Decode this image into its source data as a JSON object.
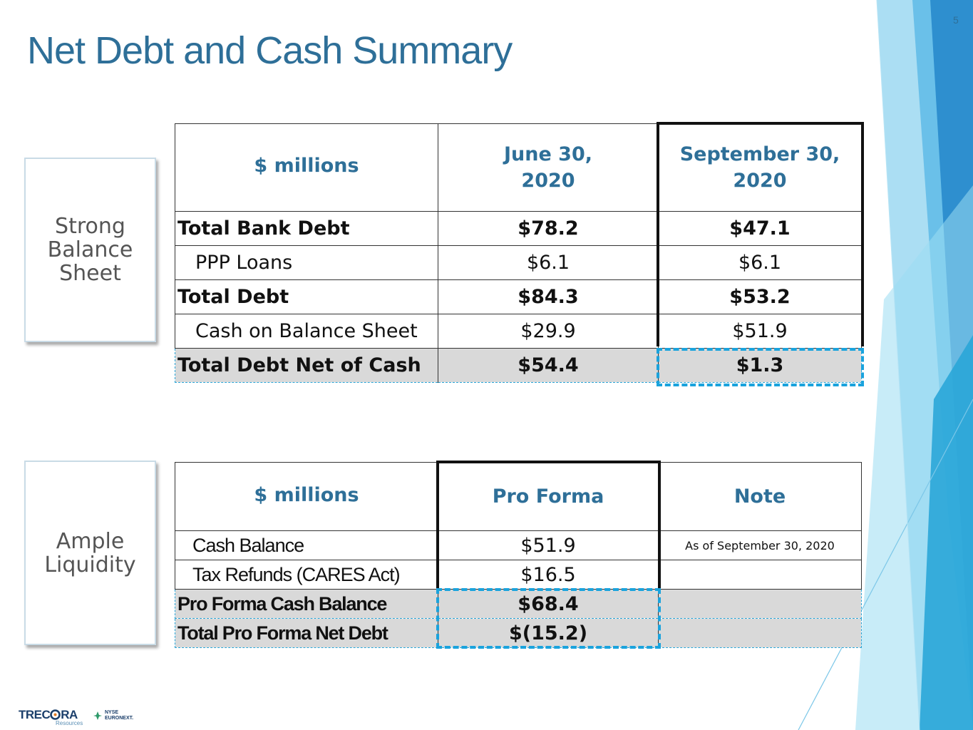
{
  "slide": {
    "title": "Net Debt and Cash Summary",
    "page_number": "5"
  },
  "card1": {
    "line1": "Strong",
    "line2": "Balance",
    "line3": "Sheet"
  },
  "card2": {
    "line1": "Ample",
    "line2": "Liquidity"
  },
  "table1": {
    "headers": [
      "$ millions",
      "June 30, 2020",
      "September 30, 2020"
    ],
    "header_lines": {
      "col2": [
        "June 30,",
        "2020"
      ],
      "col3": [
        "September 30,",
        "2020"
      ]
    },
    "rows": [
      {
        "label": "Total Bank Debt",
        "june": "$78.2",
        "sept": "$47.1"
      },
      {
        "label": "PPP Loans",
        "june": "$6.1",
        "sept": "$6.1"
      },
      {
        "label": "Total Debt",
        "june": "$84.3",
        "sept": "$53.2"
      },
      {
        "label": "Cash on Balance Sheet",
        "june": "$29.9",
        "sept": "$51.9"
      },
      {
        "label": "Total Debt Net of Cash",
        "june": "$54.4",
        "sept": "$1.3"
      }
    ]
  },
  "table2": {
    "headers": [
      "$ millions",
      "Pro Forma",
      "Note"
    ],
    "rows": [
      {
        "label": "Cash Balance",
        "value": "$51.9",
        "note": "As of September 30, 2020"
      },
      {
        "label": "Tax Refunds (CARES Act)",
        "value": "$16.5",
        "note": ""
      },
      {
        "label": "Pro Forma Cash Balance",
        "value": "$68.4",
        "note": ""
      },
      {
        "label": "Total Pro Forma Net Debt",
        "value": "$(15.2)",
        "note": ""
      }
    ]
  },
  "footer": {
    "logo_text_left": "TREC",
    "logo_text_right": "RA",
    "logo_sub": "Resources",
    "exchange_line1": "NYSE",
    "exchange_line2": "EURONEXT."
  },
  "colors": {
    "title": "#2e6f98",
    "accent_blue": "#1aa3dd",
    "deco_blue_dark": "#2e8fcf",
    "deco_blue_light": "#8fd3ef",
    "row_shade": "#d9d9d9"
  }
}
